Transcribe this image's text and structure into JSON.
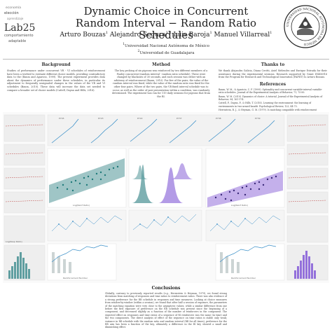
{
  "header": {
    "title_line1": "Dynamic Choice in Concurrent",
    "title_line2": "Random Interval − Random Ratio Schedules",
    "authors": [
      {
        "name": "Arturo Bouzas",
        "sup": "1"
      },
      {
        "name": "Alejandro Segura",
        "sup": "1,2"
      },
      {
        "name": "Luis Baroja",
        "sup": "1"
      },
      {
        "name": "Manuel Villarreal",
        "sup": "1"
      }
    ],
    "affiliations": [
      {
        "sup": "1",
        "text": "Universidad Nacional Autónoma de México"
      },
      {
        "sup": "2",
        "text": "Universidad de Guadalajara"
      }
    ]
  },
  "logo_left": {
    "main": "Lab25",
    "words": [
      "economía",
      "comportamiento",
      "adaptable",
      "elección",
      "aprendizaje"
    ]
  },
  "seal": {
    "text": "UNIVERSIDAD NACIONAL AUTÓNOMA DE MÉXICO"
  },
  "sections": {
    "background": {
      "title": "Background",
      "body": "Studies of performance under concurrent VR - VI schedules of reinforcement have been a testbed to evaluate different choice models, providing contradictory data to the (Baum and Aparicio, 1999). The present experiment provides data about the dynamics of performance under these schedules, in particular its adjustment to frequently unsignaled changes in the values of the VR and VI schedules (Baum, 2010). These data will increase the data set needed to compare a broader set of choice models (Cattell, Dayan and Hills, 2016)."
    },
    "method": {
      "title": "Method",
      "body": "The key pecking of six pigeons was reinforced by two different members of a Pauley concurrent (random interval - random ratio schedule). These were changed by blackouts of 30 seconds, and each session was either with an arbitrary of reinforcement (Baum, 2010). For five of the pairs, the value of the random interval was fixed, while the value of the random ratio was fixed for the other four pairs. Where of the two pairs, the VR fixed interval schedule was to occur, as well as the order of pair presentation within a condition, was randomly determined. The experiment was run for 119 daily sessions for pigeons that from the RI."
    },
    "thanks": {
      "title": "Thanks to",
      "body": "We thank Alejandra Galicia, Diana Ceritti, Ariel Melendez and Enrique Estrada for their assistance during the experimental sessions. Research supported by Grant IN406916 from the Program for Research and Technological Innovation (PAPIIT) to Arturo Bouzas."
    },
    "references": {
      "title": "References",
      "items": [
        "Baum, W. M., & Aparicio, C. F. (1999). Optimality and concurrent variable-interval variable-ratio schedules. Journal of the Experimental Analysis of Behavior, 71, 75-89.",
        "Baum, W. M. (2010). Dynamics of choice: A tutorial. Journal of the Experimental Analysis of Behavior, 94, 161-174.",
        "Cattell, P., Dayan, P., & Hills, T. (2016). Learning the environment: the learning of environments in two-armed bandit. Psychological Review, 123, 44-73.",
        "Herrnstein, R. J., & Heyman, G. M. (1979). Is matching compatible with reinforcement maximization on concurrent variable interval, variable ratio? Journal of the Experimental Analysis of Behavior, 31, 209-223."
      ]
    },
    "conclusions": {
      "title": "Conclusions",
      "body": "Globally, contrary to previously reported results (e.g., Herrnstein & Heyman, 1979), we found strong deviations from matching of responses and time ratios to reinforcement ratios. There was also evidence of a strong preference for the RR schedule in responses and time measures. Looking at choice measures from window-by-window (within a session), we found that after half a session of exposure, the parameters of the matching equation were very close to the asymptotic values, while a similar difference from one before the first exposure of preference on the RR schedule was present since the beginning of a component, and decreased slightly as a function of the number of reinforcers in the component. The expected effect on responses and time ratios of a sequence of RI reinforcers was the same (in time) and the two components. The direct analysis of effect of the sequence on time ratios is stable only weak; variance in RR schedule with the random ratio and random interval (RR for all times), preference for the RR arm has been a function of the key, ultimately a difference in the RI key showed a small and diminishing effect."
    }
  },
  "figure_labels": {
    "top_panels": [
      "P745",
      "P723",
      "P722",
      "P737",
      "P738",
      "P739"
    ],
    "row_axis": "Log(Resp Ratio)",
    "scatter_axis_left": "Log(Reinf Ratio)",
    "scatter_axis_right": "Log(Reinf Ratio)",
    "bottom_axis_left": "Reinforcement Number",
    "bottom_axis_right": "Reinforcement Number"
  },
  "colors": {
    "teal": "#5f9ea0",
    "teal_dark": "#1f7a7a",
    "purple": "#9370db",
    "purple_dark": "#3b2a7a",
    "blue": "#3a8fc8",
    "red": "#c0504d"
  }
}
